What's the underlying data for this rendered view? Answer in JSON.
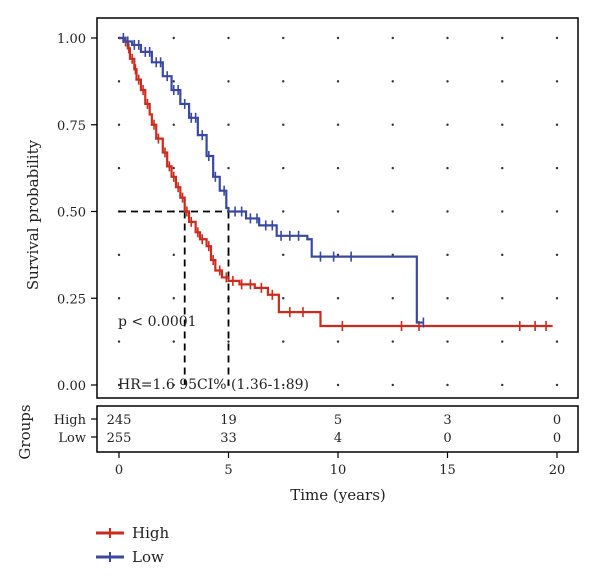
{
  "chart_data": {
    "type": "line",
    "subtype": "kaplan-meier",
    "title": "",
    "xlabel": "Time (years)",
    "ylabel": "Survival probability",
    "xlim": [
      0,
      20
    ],
    "ylim": [
      0,
      1
    ],
    "x_ticks": [
      0,
      5,
      10,
      15,
      20
    ],
    "x_tick_labels": [
      "0",
      "5",
      "10",
      "15",
      "20"
    ],
    "y_ticks": [
      0,
      0.25,
      0.5,
      0.75,
      1.0
    ],
    "y_tick_labels": [
      "0.00",
      "0.25",
      "0.50",
      "0.75",
      "1.00"
    ],
    "grid": "dotted",
    "legend_placement": "bottom-left",
    "p_value_text": "p < 0.0001",
    "hr_text": "HR=1.6 95CI% (1.36-1.89)",
    "median_survival": {
      "High": 3.0,
      "Low": 5.0
    },
    "series": [
      {
        "name": "High",
        "color": "#cc2a1d",
        "steps": [
          [
            0,
            1.0
          ],
          [
            0.2,
            0.99
          ],
          [
            0.4,
            0.97
          ],
          [
            0.5,
            0.94
          ],
          [
            0.7,
            0.91
          ],
          [
            0.8,
            0.88
          ],
          [
            1.0,
            0.85
          ],
          [
            1.2,
            0.81
          ],
          [
            1.4,
            0.78
          ],
          [
            1.5,
            0.75
          ],
          [
            1.7,
            0.71
          ],
          [
            2.0,
            0.67
          ],
          [
            2.2,
            0.63
          ],
          [
            2.4,
            0.6
          ],
          [
            2.6,
            0.57
          ],
          [
            2.8,
            0.54
          ],
          [
            3.0,
            0.5
          ],
          [
            3.2,
            0.47
          ],
          [
            3.5,
            0.44
          ],
          [
            3.7,
            0.42
          ],
          [
            4.0,
            0.4
          ],
          [
            4.2,
            0.36
          ],
          [
            4.4,
            0.33
          ],
          [
            4.7,
            0.31
          ],
          [
            5.0,
            0.3
          ],
          [
            5.5,
            0.29
          ],
          [
            6.2,
            0.28
          ],
          [
            6.8,
            0.26
          ],
          [
            7.3,
            0.21
          ],
          [
            9.2,
            0.17
          ],
          [
            19.8,
            0.17
          ]
        ],
        "censor_x": [
          0.3,
          0.45,
          0.6,
          0.75,
          0.9,
          1.1,
          1.3,
          1.6,
          1.8,
          2.1,
          2.3,
          2.5,
          2.7,
          2.9,
          3.1,
          3.3,
          3.6,
          3.8,
          4.1,
          4.3,
          4.6,
          4.9,
          5.2,
          5.6,
          6.0,
          6.5,
          7.0,
          7.8,
          8.4,
          10.2,
          12.9,
          13.7,
          18.3,
          19.0,
          19.5
        ]
      },
      {
        "name": "Low",
        "color": "#3949a0",
        "steps": [
          [
            0,
            1.0
          ],
          [
            0.3,
            0.99
          ],
          [
            0.6,
            0.98
          ],
          [
            1.0,
            0.96
          ],
          [
            1.5,
            0.93
          ],
          [
            2.0,
            0.89
          ],
          [
            2.4,
            0.85
          ],
          [
            2.8,
            0.81
          ],
          [
            3.2,
            0.77
          ],
          [
            3.6,
            0.72
          ],
          [
            4.0,
            0.66
          ],
          [
            4.3,
            0.6
          ],
          [
            4.6,
            0.56
          ],
          [
            4.9,
            0.51
          ],
          [
            5.0,
            0.5
          ],
          [
            5.8,
            0.48
          ],
          [
            6.4,
            0.46
          ],
          [
            7.2,
            0.43
          ],
          [
            8.6,
            0.42
          ],
          [
            8.8,
            0.37
          ],
          [
            13.6,
            0.37
          ],
          [
            13.6,
            0.18
          ],
          [
            13.9,
            0.18
          ]
        ],
        "censor_x": [
          0.2,
          0.4,
          0.7,
          0.9,
          1.2,
          1.4,
          1.7,
          1.9,
          2.2,
          2.5,
          2.7,
          3.0,
          3.3,
          3.5,
          3.8,
          4.1,
          4.4,
          4.8,
          5.3,
          5.6,
          6.0,
          6.3,
          6.7,
          7.0,
          7.4,
          7.8,
          8.2,
          9.2,
          9.8,
          10.6,
          13.9
        ]
      }
    ],
    "risk_table": {
      "title": "Groups",
      "rows": [
        {
          "label": "High",
          "counts": [
            "245",
            "19",
            "5",
            "3",
            "0"
          ]
        },
        {
          "label": "Low",
          "counts": [
            "255",
            "33",
            "4",
            "0",
            "0"
          ]
        }
      ]
    },
    "legend": [
      "High",
      "Low"
    ]
  }
}
